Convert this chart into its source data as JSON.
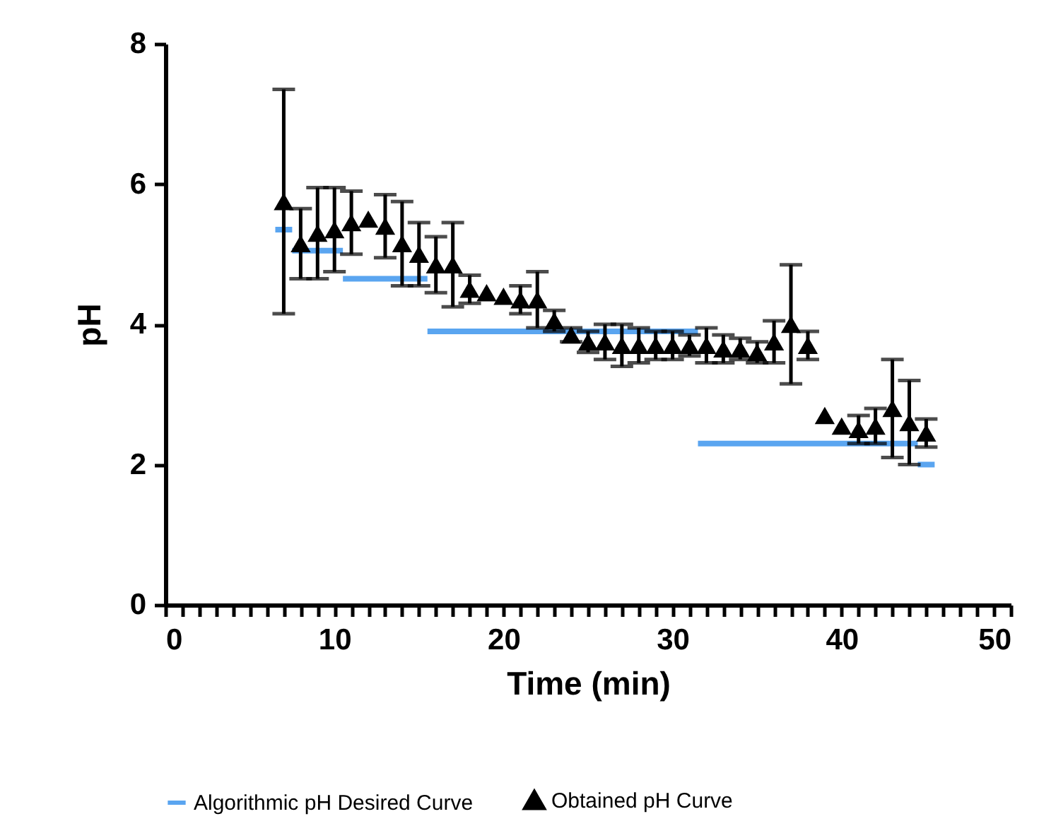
{
  "chart_data": {
    "type": "scatter",
    "xlabel": "Time (min)",
    "ylabel": "pH",
    "xlim": [
      0,
      50
    ],
    "ylim": [
      0,
      8
    ],
    "xticks": [
      0,
      {
        "value": 1,
        "label": null
      },
      {
        "value": 2,
        "label": null
      },
      {
        "value": 3,
        "label": null
      },
      {
        "value": 4,
        "label": null
      },
      {
        "value": 5,
        "label": null
      },
      {
        "value": 6,
        "label": null
      },
      {
        "value": 7,
        "label": null
      },
      {
        "value": 8,
        "label": null
      },
      {
        "value": 9,
        "label": null
      },
      10,
      {
        "value": 11,
        "label": null
      },
      {
        "value": 12,
        "label": null
      },
      {
        "value": 13,
        "label": null
      },
      {
        "value": 14,
        "label": null
      },
      {
        "value": 15,
        "label": null
      },
      {
        "value": 16,
        "label": null
      },
      {
        "value": 17,
        "label": null
      },
      {
        "value": 18,
        "label": null
      },
      {
        "value": 19,
        "label": null
      },
      20,
      {
        "value": 21,
        "label": null
      },
      {
        "value": 22,
        "label": null
      },
      {
        "value": 23,
        "label": null
      },
      {
        "value": 24,
        "label": null
      },
      {
        "value": 25,
        "label": null
      },
      {
        "value": 26,
        "label": null
      },
      {
        "value": 27,
        "label": null
      },
      {
        "value": 28,
        "label": null
      },
      {
        "value": 29,
        "label": null
      },
      30,
      {
        "value": 31,
        "label": null
      },
      {
        "value": 32,
        "label": null
      },
      {
        "value": 33,
        "label": null
      },
      {
        "value": 34,
        "label": null
      },
      {
        "value": 35,
        "label": null
      },
      {
        "value": 36,
        "label": null
      },
      {
        "value": 37,
        "label": null
      },
      {
        "value": 38,
        "label": null
      },
      {
        "value": 39,
        "label": null
      },
      40,
      {
        "value": 41,
        "label": null
      },
      {
        "value": 42,
        "label": null
      },
      {
        "value": 43,
        "label": null
      },
      {
        "value": 44,
        "label": null
      },
      {
        "value": 45,
        "label": null
      },
      {
        "value": 46,
        "label": null
      },
      {
        "value": 47,
        "label": null
      },
      {
        "value": 48,
        "label": null
      },
      {
        "value": 49,
        "label": null
      },
      50
    ],
    "yticks": [
      0,
      2,
      4,
      6,
      8
    ],
    "grid": false,
    "legend": "bottom",
    "series": [
      {
        "name": "Algorithmic pH Desired Curve",
        "type": "line",
        "color": "#5aa5f0",
        "marker": "none",
        "line_style": "solid",
        "x": [
          6.5,
          7.5
        ],
        "values": [
          5.35,
          5.35
        ]
      },
      {
        "type": "line",
        "color": "#5aa5f0",
        "marker": "none",
        "line_style": "solid",
        "x": [
          7.5,
          10.5
        ],
        "values": [
          5.05,
          5.05
        ]
      },
      {
        "type": "line",
        "color": "#5aa5f0",
        "marker": "none",
        "line_style": "solid",
        "x": [
          10.5,
          15.5
        ],
        "values": [
          4.65,
          4.65
        ]
      },
      {
        "type": "line",
        "color": "#5aa5f0",
        "marker": "none",
        "line_style": "solid",
        "x": [
          15.5,
          31.5
        ],
        "values": [
          3.9,
          3.9
        ]
      },
      {
        "type": "line",
        "color": "#5aa5f0",
        "marker": "none",
        "line_style": "solid",
        "x": [
          31.5,
          44.5
        ],
        "values": [
          2.3,
          2.3
        ]
      },
      {
        "type": "line",
        "color": "#5aa5f0",
        "marker": "none",
        "line_style": "solid",
        "x": [
          44.5,
          45.5
        ],
        "values": [
          2.0,
          2.0
        ]
      },
      {
        "name": "Obtained pH Curve",
        "color": "#000000",
        "marker": "triangle",
        "x": [
          7,
          8,
          9,
          10,
          11,
          12,
          13,
          14,
          15,
          16,
          17,
          18,
          19,
          20,
          21,
          22,
          23,
          24,
          25,
          26,
          27,
          28,
          29,
          30,
          31,
          32,
          33,
          34,
          35,
          36,
          37,
          38,
          39,
          40,
          41,
          42,
          43,
          44,
          45
        ],
        "values": [
          5.75,
          5.15,
          5.3,
          5.35,
          5.45,
          5.5,
          5.4,
          5.15,
          5.0,
          4.85,
          4.85,
          4.5,
          4.45,
          4.4,
          4.35,
          4.35,
          4.05,
          3.85,
          3.75,
          3.75,
          3.7,
          3.7,
          3.7,
          3.7,
          3.7,
          3.7,
          3.65,
          3.65,
          3.6,
          3.75,
          4.0,
          3.7,
          2.7,
          2.55,
          2.5,
          2.55,
          2.8,
          2.6,
          2.45
        ],
        "errors": [
          1.6,
          0.5,
          0.65,
          0.6,
          0.45,
          null,
          0.45,
          0.6,
          0.45,
          0.4,
          0.6,
          0.2,
          null,
          null,
          0.2,
          0.4,
          0.15,
          0.1,
          0.15,
          0.25,
          0.3,
          0.25,
          0.2,
          0.2,
          0.15,
          0.25,
          0.2,
          0.15,
          0.15,
          0.3,
          0.85,
          0.2,
          null,
          null,
          0.2,
          0.25,
          0.7,
          0.6,
          0.2
        ]
      }
    ]
  }
}
